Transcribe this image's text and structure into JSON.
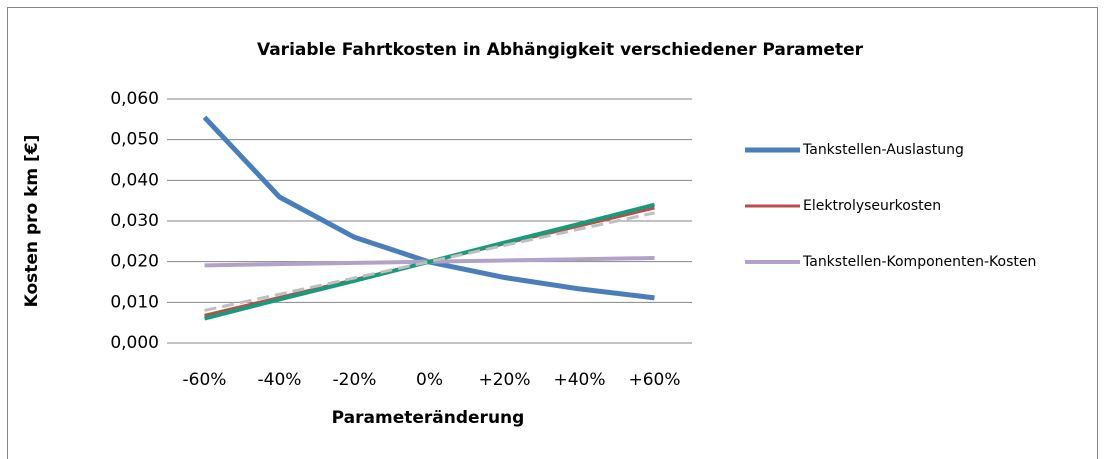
{
  "chart_data": {
    "type": "line",
    "title": "Variable Fahrtkosten in Abhängigkeit verschiedener Parameter",
    "x_label": "Parameteränderung",
    "y_label": "Kosten pro km [€]",
    "categories": [
      "-60%",
      "-40%",
      "-20%",
      "0%",
      "+20%",
      "+40%",
      "+60%"
    ],
    "ylim": [
      0,
      0.06
    ],
    "yticks": [
      {
        "value": 0,
        "label": "0,000"
      },
      {
        "value": 0.01,
        "label": "0,010"
      },
      {
        "value": 0.02,
        "label": "0,020"
      },
      {
        "value": 0.03,
        "label": "0,030"
      },
      {
        "value": 0.04,
        "label": "0,040"
      },
      {
        "value": 0.05,
        "label": "0,050"
      },
      {
        "value": 0.06,
        "label": "0,060"
      }
    ],
    "grid": true,
    "legend": "right",
    "series": [
      {
        "name": "Tankstellen-Auslastung",
        "color": "#4a7ebb",
        "width": 5,
        "values": [
          0.0555,
          0.0359,
          0.026,
          0.0199,
          0.0161,
          0.0133,
          0.0111
        ]
      },
      {
        "name": "Elektrolyseurkosten",
        "color": "#be4b48",
        "width": 3,
        "values": [
          0.0068,
          0.0112,
          0.0156,
          0.02,
          0.0244,
          0.0288,
          0.0332
        ]
      },
      {
        "name": "Tankstellen-Komponenten-Kosten",
        "color": "#b3a2c7",
        "width": 4,
        "values": [
          0.0191,
          0.0194,
          0.0197,
          0.02,
          0.0203,
          0.0206,
          0.0209
        ]
      },
      {
        "color": "#1a9a7c",
        "width": 4,
        "values": [
          0.006,
          0.0107,
          0.0153,
          0.02,
          0.0247,
          0.0293,
          0.034
        ]
      },
      {
        "color": "#bfbfbf",
        "width": 3,
        "dashed": true,
        "values": [
          0.008,
          0.012,
          0.016,
          0.02,
          0.024,
          0.028,
          0.032
        ]
      }
    ]
  }
}
